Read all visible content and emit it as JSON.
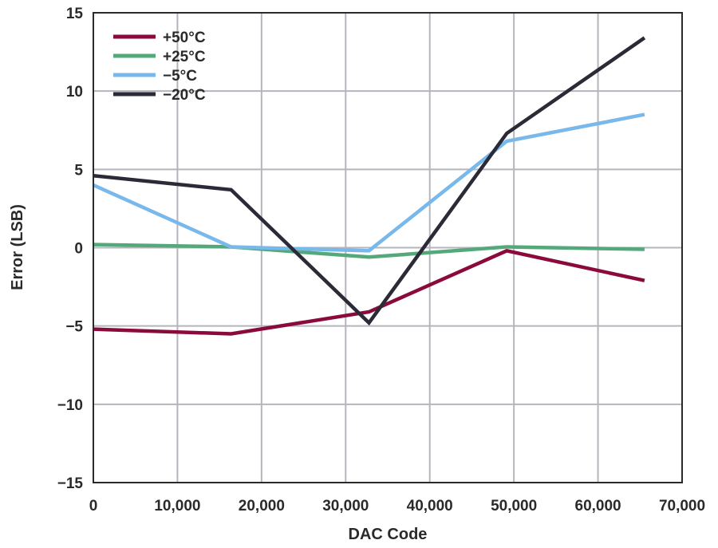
{
  "chart_data": {
    "type": "line",
    "title": "",
    "xlabel": "DAC Code",
    "ylabel": "Error (LSB)",
    "xlim": [
      0,
      70000
    ],
    "ylim": [
      -15,
      15
    ],
    "xticks": [
      0,
      10000,
      20000,
      30000,
      40000,
      50000,
      60000,
      70000
    ],
    "xtick_labels": [
      "0",
      "10,000",
      "20,000",
      "30,000",
      "40,000",
      "50,000",
      "60,000",
      "70,000"
    ],
    "yticks": [
      15,
      10,
      5,
      0,
      -5,
      -10,
      -15
    ],
    "ytick_labels": [
      "15",
      "10",
      "5",
      "0",
      "−5",
      "−10",
      "−15"
    ],
    "grid": true,
    "legend_position": "top-left",
    "series": [
      {
        "name": "+50°C",
        "color": "#8b0a3c",
        "x": [
          0,
          16384,
          32768,
          49152,
          65535
        ],
        "values": [
          -5.2,
          -5.5,
          -4.1,
          -0.2,
          -2.1
        ]
      },
      {
        "name": "+25°C",
        "color": "#55a87a",
        "x": [
          0,
          16384,
          32768,
          49152,
          65535
        ],
        "values": [
          0.2,
          0.05,
          -0.6,
          0.05,
          -0.1
        ]
      },
      {
        "name": "−5°C",
        "color": "#78b8ea",
        "x": [
          0,
          16384,
          32768,
          49152,
          65535
        ],
        "values": [
          4.0,
          0.05,
          -0.2,
          6.8,
          8.5
        ]
      },
      {
        "name": "−20°C",
        "color": "#2b2b38",
        "x": [
          0,
          16384,
          32768,
          49152,
          65535
        ],
        "values": [
          4.6,
          3.7,
          -4.8,
          7.3,
          13.4
        ]
      }
    ]
  }
}
